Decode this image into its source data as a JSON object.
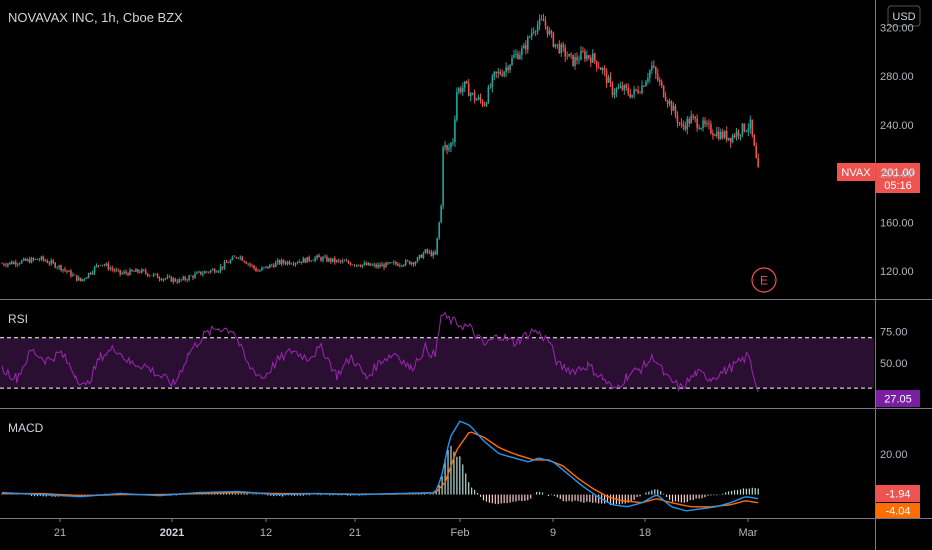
{
  "chart_data": {
    "type": "candlestick",
    "title": "NOVAVAX INC, 1h, Cboe BZX",
    "currency": "USD",
    "symbol": "NVAX",
    "last_price": "201.00",
    "countdown": "05:16",
    "price_ticks": [
      "320.00",
      "280.00",
      "240.00",
      "200.00",
      "160.00",
      "120.00"
    ],
    "price_tick_values": [
      320,
      280,
      240,
      200,
      160,
      120
    ],
    "ylim": [
      98,
      336
    ],
    "x_ticks": [
      "21",
      "2021",
      "12",
      "21",
      "Feb",
      "9",
      "18",
      "Mar"
    ],
    "earnings_marker": "E",
    "price_series": [
      {
        "x": 0,
        "y": 126
      },
      {
        "x": 20,
        "y": 128
      },
      {
        "x": 40,
        "y": 130
      },
      {
        "x": 60,
        "y": 123
      },
      {
        "x": 80,
        "y": 112
      },
      {
        "x": 100,
        "y": 127
      },
      {
        "x": 120,
        "y": 118
      },
      {
        "x": 140,
        "y": 120
      },
      {
        "x": 160,
        "y": 115
      },
      {
        "x": 180,
        "y": 112
      },
      {
        "x": 200,
        "y": 118
      },
      {
        "x": 220,
        "y": 122
      },
      {
        "x": 240,
        "y": 133
      },
      {
        "x": 260,
        "y": 120
      },
      {
        "x": 280,
        "y": 127
      },
      {
        "x": 300,
        "y": 128
      },
      {
        "x": 320,
        "y": 131
      },
      {
        "x": 340,
        "y": 128
      },
      {
        "x": 360,
        "y": 126
      },
      {
        "x": 380,
        "y": 124
      },
      {
        "x": 400,
        "y": 126
      },
      {
        "x": 420,
        "y": 128
      },
      {
        "x": 430,
        "y": 136
      },
      {
        "x": 440,
        "y": 133
      },
      {
        "x": 446,
        "y": 173
      },
      {
        "x": 448,
        "y": 225
      },
      {
        "x": 452,
        "y": 218
      },
      {
        "x": 458,
        "y": 228
      },
      {
        "x": 462,
        "y": 268
      },
      {
        "x": 470,
        "y": 272
      },
      {
        "x": 480,
        "y": 262
      },
      {
        "x": 490,
        "y": 258
      },
      {
        "x": 500,
        "y": 280
      },
      {
        "x": 510,
        "y": 285
      },
      {
        "x": 520,
        "y": 296
      },
      {
        "x": 530,
        "y": 302
      },
      {
        "x": 540,
        "y": 320
      },
      {
        "x": 550,
        "y": 325
      },
      {
        "x": 560,
        "y": 308
      },
      {
        "x": 570,
        "y": 300
      },
      {
        "x": 580,
        "y": 292
      },
      {
        "x": 590,
        "y": 298
      },
      {
        "x": 600,
        "y": 295
      },
      {
        "x": 610,
        "y": 285
      },
      {
        "x": 620,
        "y": 268
      },
      {
        "x": 630,
        "y": 270
      },
      {
        "x": 640,
        "y": 265
      },
      {
        "x": 650,
        "y": 272
      },
      {
        "x": 660,
        "y": 288
      },
      {
        "x": 670,
        "y": 270
      },
      {
        "x": 680,
        "y": 255
      },
      {
        "x": 690,
        "y": 238
      },
      {
        "x": 700,
        "y": 245
      },
      {
        "x": 710,
        "y": 240
      },
      {
        "x": 720,
        "y": 236
      },
      {
        "x": 730,
        "y": 232
      },
      {
        "x": 740,
        "y": 230
      },
      {
        "x": 750,
        "y": 236
      },
      {
        "x": 760,
        "y": 240
      },
      {
        "x": 764,
        "y": 220
      },
      {
        "x": 768,
        "y": 201
      }
    ],
    "rsi": {
      "label": "RSI",
      "last_value": "27.05",
      "ticks": [
        "75.00",
        "50.00"
      ],
      "tick_values": [
        75,
        50
      ],
      "ylim": [
        15,
        100
      ],
      "upper_band": 70,
      "lower_band": 30,
      "series": [
        {
          "x": 0,
          "y": 45
        },
        {
          "x": 15,
          "y": 38
        },
        {
          "x": 30,
          "y": 60
        },
        {
          "x": 45,
          "y": 52
        },
        {
          "x": 60,
          "y": 58
        },
        {
          "x": 75,
          "y": 40
        },
        {
          "x": 85,
          "y": 30
        },
        {
          "x": 100,
          "y": 55
        },
        {
          "x": 115,
          "y": 62
        },
        {
          "x": 130,
          "y": 50
        },
        {
          "x": 145,
          "y": 48
        },
        {
          "x": 160,
          "y": 40
        },
        {
          "x": 175,
          "y": 33
        },
        {
          "x": 190,
          "y": 58
        },
        {
          "x": 205,
          "y": 72
        },
        {
          "x": 220,
          "y": 78
        },
        {
          "x": 235,
          "y": 76
        },
        {
          "x": 250,
          "y": 48
        },
        {
          "x": 265,
          "y": 38
        },
        {
          "x": 280,
          "y": 52
        },
        {
          "x": 295,
          "y": 60
        },
        {
          "x": 310,
          "y": 54
        },
        {
          "x": 325,
          "y": 62
        },
        {
          "x": 340,
          "y": 40
        },
        {
          "x": 355,
          "y": 55
        },
        {
          "x": 370,
          "y": 38
        },
        {
          "x": 385,
          "y": 52
        },
        {
          "x": 400,
          "y": 58
        },
        {
          "x": 415,
          "y": 45
        },
        {
          "x": 430,
          "y": 62
        },
        {
          "x": 440,
          "y": 55
        },
        {
          "x": 446,
          "y": 88
        },
        {
          "x": 460,
          "y": 82
        },
        {
          "x": 475,
          "y": 78
        },
        {
          "x": 490,
          "y": 64
        },
        {
          "x": 505,
          "y": 72
        },
        {
          "x": 520,
          "y": 66
        },
        {
          "x": 540,
          "y": 76
        },
        {
          "x": 555,
          "y": 68
        },
        {
          "x": 565,
          "y": 48
        },
        {
          "x": 580,
          "y": 44
        },
        {
          "x": 595,
          "y": 48
        },
        {
          "x": 610,
          "y": 38
        },
        {
          "x": 622,
          "y": 28
        },
        {
          "x": 635,
          "y": 40
        },
        {
          "x": 650,
          "y": 46
        },
        {
          "x": 662,
          "y": 55
        },
        {
          "x": 675,
          "y": 38
        },
        {
          "x": 690,
          "y": 30
        },
        {
          "x": 705,
          "y": 42
        },
        {
          "x": 720,
          "y": 38
        },
        {
          "x": 735,
          "y": 44
        },
        {
          "x": 748,
          "y": 50
        },
        {
          "x": 758,
          "y": 56
        },
        {
          "x": 768,
          "y": 27
        }
      ]
    },
    "macd": {
      "label": "MACD",
      "tick": "20.00",
      "tick_value": 20,
      "ylim": [
        -11,
        42
      ],
      "macd_value": "-1.94",
      "signal_value": "-4.04",
      "macd_series": [
        {
          "x": 0,
          "y": 1
        },
        {
          "x": 40,
          "y": 0
        },
        {
          "x": 80,
          "y": -1
        },
        {
          "x": 120,
          "y": 0.5
        },
        {
          "x": 160,
          "y": -0.5
        },
        {
          "x": 200,
          "y": 1
        },
        {
          "x": 240,
          "y": 1.5
        },
        {
          "x": 280,
          "y": 0
        },
        {
          "x": 320,
          "y": 0.5
        },
        {
          "x": 360,
          "y": 0
        },
        {
          "x": 400,
          "y": 0.5
        },
        {
          "x": 440,
          "y": 1
        },
        {
          "x": 446,
          "y": 8
        },
        {
          "x": 455,
          "y": 28
        },
        {
          "x": 465,
          "y": 36
        },
        {
          "x": 475,
          "y": 34
        },
        {
          "x": 490,
          "y": 26
        },
        {
          "x": 505,
          "y": 20
        },
        {
          "x": 520,
          "y": 18
        },
        {
          "x": 535,
          "y": 16
        },
        {
          "x": 545,
          "y": 18
        },
        {
          "x": 560,
          "y": 16
        },
        {
          "x": 575,
          "y": 10
        },
        {
          "x": 590,
          "y": 4
        },
        {
          "x": 605,
          "y": -1
        },
        {
          "x": 620,
          "y": -5
        },
        {
          "x": 635,
          "y": -6
        },
        {
          "x": 650,
          "y": -4
        },
        {
          "x": 665,
          "y": 0
        },
        {
          "x": 680,
          "y": -6
        },
        {
          "x": 695,
          "y": -8
        },
        {
          "x": 710,
          "y": -7
        },
        {
          "x": 725,
          "y": -6
        },
        {
          "x": 740,
          "y": -4
        },
        {
          "x": 755,
          "y": -1
        },
        {
          "x": 768,
          "y": -2
        }
      ],
      "signal_series": [
        {
          "x": 0,
          "y": 0.5
        },
        {
          "x": 40,
          "y": 0.5
        },
        {
          "x": 80,
          "y": -0.5
        },
        {
          "x": 120,
          "y": 0
        },
        {
          "x": 160,
          "y": 0
        },
        {
          "x": 200,
          "y": 0.5
        },
        {
          "x": 240,
          "y": 1
        },
        {
          "x": 280,
          "y": 0.5
        },
        {
          "x": 320,
          "y": 0.5
        },
        {
          "x": 360,
          "y": 0.2
        },
        {
          "x": 400,
          "y": 0.3
        },
        {
          "x": 440,
          "y": 0.8
        },
        {
          "x": 450,
          "y": 6
        },
        {
          "x": 462,
          "y": 22
        },
        {
          "x": 475,
          "y": 31
        },
        {
          "x": 490,
          "y": 28
        },
        {
          "x": 505,
          "y": 23
        },
        {
          "x": 520,
          "y": 20
        },
        {
          "x": 540,
          "y": 17
        },
        {
          "x": 555,
          "y": 17
        },
        {
          "x": 570,
          "y": 14
        },
        {
          "x": 585,
          "y": 8
        },
        {
          "x": 600,
          "y": 3
        },
        {
          "x": 615,
          "y": -1
        },
        {
          "x": 630,
          "y": -3
        },
        {
          "x": 650,
          "y": -4
        },
        {
          "x": 665,
          "y": -2
        },
        {
          "x": 680,
          "y": -4
        },
        {
          "x": 700,
          "y": -6
        },
        {
          "x": 720,
          "y": -6
        },
        {
          "x": 740,
          "y": -5
        },
        {
          "x": 755,
          "y": -3
        },
        {
          "x": 768,
          "y": -4
        }
      ]
    },
    "colors": {
      "background": "#000000",
      "up": "#26a69a",
      "down": "#ef5350",
      "rsi_line": "#9c27b0",
      "rsi_band_fill": "#2a0f33",
      "macd_line": "#2196f3",
      "signal_line": "#ff6d00",
      "hist_up": "#b2dfdb",
      "hist_down": "#ffcdd2",
      "grid": "#2a2e39",
      "separator": "#787b86",
      "badge": "#ef5350",
      "signal_badge": "#ff6d00",
      "rsi_badge": "#7b1fa2",
      "earnings": "#ef5350"
    }
  }
}
